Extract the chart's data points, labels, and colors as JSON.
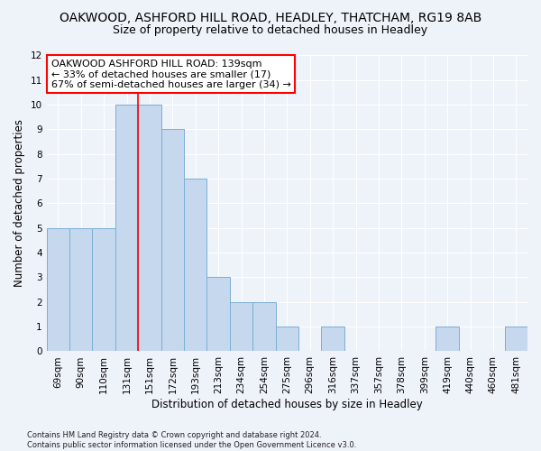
{
  "title": "OAKWOOD, ASHFORD HILL ROAD, HEADLEY, THATCHAM, RG19 8AB",
  "subtitle": "Size of property relative to detached houses in Headley",
  "xlabel": "Distribution of detached houses by size in Headley",
  "ylabel": "Number of detached properties",
  "footer": "Contains HM Land Registry data © Crown copyright and database right 2024.\nContains public sector information licensed under the Open Government Licence v3.0.",
  "categories": [
    "69sqm",
    "90sqm",
    "110sqm",
    "131sqm",
    "151sqm",
    "172sqm",
    "193sqm",
    "213sqm",
    "234sqm",
    "254sqm",
    "275sqm",
    "296sqm",
    "316sqm",
    "337sqm",
    "357sqm",
    "378sqm",
    "399sqm",
    "419sqm",
    "440sqm",
    "460sqm",
    "481sqm"
  ],
  "values": [
    5,
    5,
    5,
    10,
    10,
    9,
    7,
    3,
    2,
    2,
    1,
    0,
    1,
    0,
    0,
    0,
    0,
    1,
    0,
    0,
    1
  ],
  "bar_color": "#c5d8ed",
  "bar_edge_color": "#7bafd4",
  "ylim": [
    0,
    12
  ],
  "yticks": [
    0,
    1,
    2,
    3,
    4,
    5,
    6,
    7,
    8,
    9,
    10,
    11,
    12
  ],
  "red_line_x": 3.5,
  "annotation_text": "OAKWOOD ASHFORD HILL ROAD: 139sqm\n← 33% of detached houses are smaller (17)\n67% of semi-detached houses are larger (34) →",
  "annotation_box_color": "white",
  "annotation_box_edge_color": "red",
  "background_color": "#eef2f9",
  "grid_color": "white",
  "title_fontsize": 10,
  "subtitle_fontsize": 9,
  "axis_label_fontsize": 8.5,
  "tick_fontsize": 7.5,
  "annotation_fontsize": 8,
  "footer_fontsize": 6
}
